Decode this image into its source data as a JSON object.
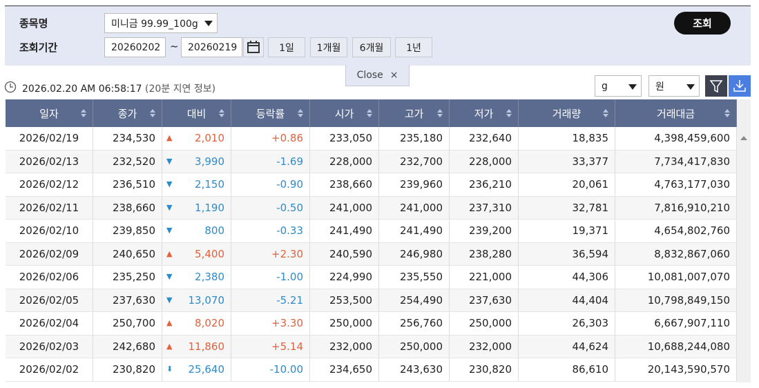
{
  "filter": {
    "item_label": "종목명",
    "item_value": "미니금 99.99_100g",
    "period_label": "조회기간",
    "start_date": "20260202",
    "separator": "~",
    "end_date": "20260219",
    "quick_buttons": [
      "1일",
      "1개월",
      "6개월",
      "1년"
    ],
    "search_button": "조회",
    "close_tab": "Close",
    "close_icon": "×"
  },
  "toolbar": {
    "timestamp": "2026.02.20 AM 06:58:17",
    "delay_note": "(20분 지연 정보)",
    "unit_select": "g",
    "currency_select": "원"
  },
  "table": {
    "columns": [
      "일자",
      "종가",
      "대비",
      "등락률",
      "시가",
      "고가",
      "저가",
      "거래량",
      "거래대금"
    ],
    "rows": [
      [
        "2026/02/19",
        "234,530",
        "▲",
        "2,010",
        "+0.86",
        "233,050",
        "235,180",
        "232,640",
        "18,835",
        "4,398,459,600"
      ],
      [
        "2026/02/13",
        "232,520",
        "▼",
        "3,990",
        "-1.69",
        "228,000",
        "232,700",
        "228,000",
        "33,377",
        "7,734,417,830"
      ],
      [
        "2026/02/12",
        "236,510",
        "▼",
        "2,150",
        "-0.90",
        "238,660",
        "239,960",
        "236,210",
        "20,061",
        "4,763,177,030"
      ],
      [
        "2026/02/11",
        "238,660",
        "▼",
        "1,190",
        "-0.50",
        "241,000",
        "241,000",
        "237,310",
        "32,781",
        "7,816,910,210"
      ],
      [
        "2026/02/10",
        "239,850",
        "▼",
        "800",
        "-0.33",
        "241,490",
        "241,490",
        "239,200",
        "19,371",
        "4,654,802,760"
      ],
      [
        "2026/02/09",
        "240,650",
        "▲",
        "5,400",
        "+2.30",
        "240,590",
        "246,980",
        "238,280",
        "36,594",
        "8,832,867,060"
      ],
      [
        "2026/02/06",
        "235,250",
        "▼",
        "2,380",
        "-1.00",
        "224,990",
        "235,550",
        "221,000",
        "44,306",
        "10,081,007,070"
      ],
      [
        "2026/02/05",
        "237,630",
        "▼",
        "13,070",
        "-5.21",
        "253,500",
        "254,490",
        "237,630",
        "44,404",
        "10,798,849,150"
      ],
      [
        "2026/02/04",
        "250,700",
        "▲",
        "8,020",
        "+3.30",
        "250,000",
        "256,760",
        "250,000",
        "26,303",
        "6,667,907,110"
      ],
      [
        "2026/02/03",
        "242,680",
        "▲",
        "11,860",
        "+5.14",
        "232,000",
        "250,000",
        "232,000",
        "44,624",
        "10,688,244,080"
      ],
      [
        "2026/02/02",
        "230,820",
        "⬇",
        "25,640",
        "-10.00",
        "234,650",
        "243,630",
        "230,820",
        "86,610",
        "20,143,590,570"
      ]
    ],
    "change_colors": [
      "#e4603a",
      "#2a8ccc",
      "#2a8ccc",
      "#2a8ccc",
      "#2a8ccc",
      "#e4603a",
      "#2a8ccc",
      "#2a8ccc",
      "#e4603a",
      "#e4603a",
      "#2a8ccc"
    ]
  }
}
